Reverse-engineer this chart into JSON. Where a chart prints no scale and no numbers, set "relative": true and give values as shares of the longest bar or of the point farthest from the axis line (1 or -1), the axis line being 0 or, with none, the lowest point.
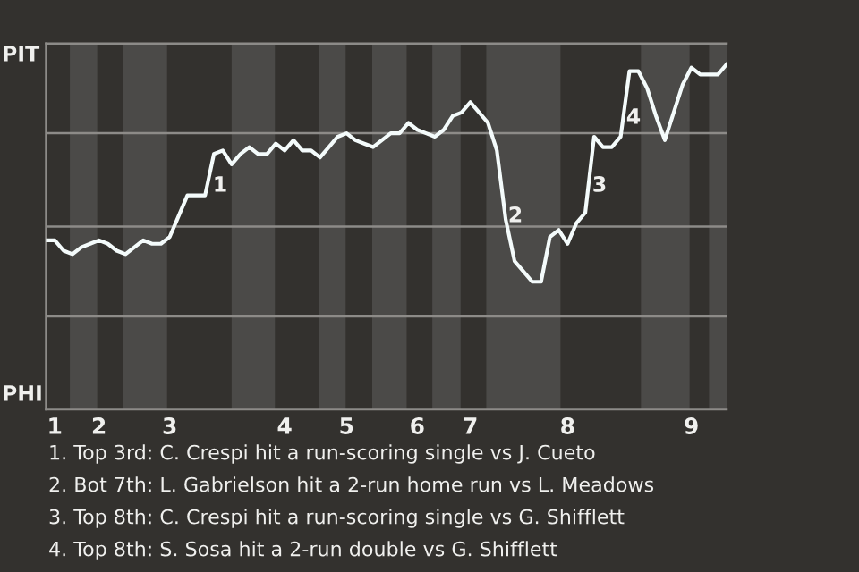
{
  "chart_data": {
    "type": "line",
    "relative": true,
    "categories": [
      null,
      "1",
      null,
      null,
      null,
      null,
      "2",
      null,
      null,
      null,
      null,
      null,
      null,
      null,
      "3",
      null,
      null,
      null,
      null,
      null,
      null,
      null,
      null,
      null,
      null,
      null,
      null,
      "4",
      null,
      null,
      null,
      null,
      null,
      null,
      "5",
      null,
      null,
      null,
      null,
      null,
      null,
      null,
      "6",
      null,
      null,
      null,
      null,
      null,
      "7",
      null,
      null,
      null,
      null,
      null,
      null,
      null,
      null,
      null,
      null,
      "8",
      null,
      null,
      null,
      null,
      null,
      null,
      null,
      null,
      null,
      null,
      null,
      null,
      null,
      "9",
      null,
      null,
      null,
      null
    ],
    "series": [
      {
        "color": "#f4fbfb",
        "values": [
          0.49,
          0.49,
          0.46,
          0.45,
          0.47,
          0.48,
          0.49,
          0.48,
          0.46,
          0.45,
          0.47,
          0.49,
          0.48,
          0.48,
          0.5,
          0.56,
          0.62,
          0.62,
          0.62,
          0.74,
          0.75,
          0.71,
          0.74,
          0.76,
          0.74,
          0.74,
          0.77,
          0.75,
          0.78,
          0.75,
          0.75,
          0.73,
          0.76,
          0.79,
          0.8,
          0.78,
          0.77,
          0.76,
          0.78,
          0.8,
          0.8,
          0.83,
          0.81,
          0.8,
          0.79,
          0.81,
          0.85,
          0.86,
          0.89,
          0.86,
          0.83,
          0.75,
          0.55,
          0.43,
          0.4,
          0.37,
          0.37,
          0.5,
          0.52,
          0.48,
          0.54,
          0.57,
          0.79,
          0.76,
          0.76,
          0.79,
          0.98,
          0.98,
          0.93,
          0.85,
          0.78,
          0.86,
          0.94,
          0.99,
          0.97,
          0.97,
          0.97,
          1
        ]
      }
    ],
    "grid": false,
    "marker": "none",
    "line_style": "solid",
    "ref_lines": [
      {
        "axis": "y",
        "value": 0.27,
        "color": "#8d8b88"
      },
      {
        "axis": "y",
        "value": 0.53,
        "color": "#8d8b88"
      },
      {
        "axis": "y",
        "value": 0.8,
        "color": "#8d8b88"
      },
      {
        "axis": "y",
        "value": 1.06,
        "color": "#8d8b88"
      }
    ],
    "annotations": [
      "PIT",
      "PHI",
      "1",
      "2",
      "3",
      "4",
      "1. Top 3rd: C. Crespi hit a run-scoring single vs J. Cueto",
      "2. Bot 7th: L. Gabrielson hit a 2-run home run vs L. Meadows",
      "3. Top 8th: C. Crespi hit a run-scoring single vs G. Shifflett",
      "4. Top 8th: S. Sosa hit a 2-run double vs G. Shifflett"
    ]
  }
}
